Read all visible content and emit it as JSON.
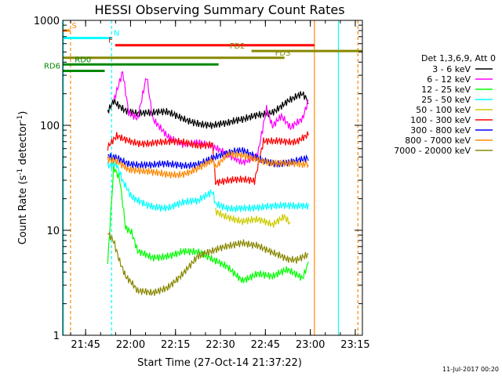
{
  "chart_data": {
    "type": "line",
    "title": "HESSI Observing Summary Count Rates",
    "xlabel": "Start Time (27-Oct-14 21:37:22)",
    "ylabel_main": "Count Rate (s",
    "ylabel_sup1": "-1",
    "ylabel_mid": " detector",
    "ylabel_sup2": "-1",
    "ylabel_end": ")",
    "yscale": "log",
    "ylim": [
      1,
      1000
    ],
    "y_ticks": [
      1,
      10,
      100,
      1000
    ],
    "y_tick_labels": [
      "1",
      "10",
      "100",
      "1000"
    ],
    "xlim_minutes": [
      0,
      100
    ],
    "x_ticks_minutes": [
      7.63,
      22.63,
      37.63,
      52.63,
      67.63,
      82.63,
      97.63
    ],
    "x_tick_labels": [
      "21:45",
      "22:00",
      "22:15",
      "22:30",
      "22:45",
      "23:00",
      "23:15"
    ],
    "legend_title": "Det 1,3,6,9, Att 0",
    "legend_placement": "right",
    "series": [
      {
        "name": "3 - 6 keV",
        "color": "#000000",
        "points": [
          [
            15,
            140
          ],
          [
            17,
            180
          ],
          [
            19,
            160
          ],
          [
            21,
            145
          ],
          [
            25,
            130
          ],
          [
            30,
            125
          ],
          [
            35,
            130
          ],
          [
            40,
            120
          ],
          [
            45,
            110
          ],
          [
            50,
            100
          ],
          [
            55,
            100
          ],
          [
            60,
            110
          ],
          [
            65,
            130
          ],
          [
            70,
            140
          ],
          [
            75,
            170
          ],
          [
            80,
            190
          ],
          [
            82,
            160
          ]
        ]
      },
      {
        "name": "6 - 12 keV",
        "color": "#ff00ff",
        "points": [
          [
            17,
            180
          ],
          [
            20,
            330
          ],
          [
            22,
            130
          ],
          [
            25,
            110
          ],
          [
            28,
            280
          ],
          [
            30,
            110
          ],
          [
            35,
            80
          ],
          [
            40,
            70
          ],
          [
            45,
            70
          ],
          [
            50,
            60
          ],
          [
            55,
            50
          ],
          [
            60,
            45
          ],
          [
            65,
            55
          ],
          [
            68,
            150
          ],
          [
            70,
            100
          ],
          [
            73,
            120
          ],
          [
            76,
            90
          ],
          [
            80,
            110
          ],
          [
            82,
            170
          ]
        ]
      },
      {
        "name": "12 - 25 keV",
        "color": "#00ff00",
        "points": [
          [
            15,
            5
          ],
          [
            17,
            40
          ],
          [
            19,
            30
          ],
          [
            21,
            10
          ],
          [
            23,
            9
          ],
          [
            25,
            6
          ],
          [
            30,
            5.5
          ],
          [
            35,
            6
          ],
          [
            40,
            6.5
          ],
          [
            45,
            6
          ],
          [
            50,
            5
          ],
          [
            55,
            4.5
          ],
          [
            60,
            3.5
          ],
          [
            65,
            4
          ],
          [
            70,
            3.5
          ],
          [
            75,
            4
          ],
          [
            80,
            3.5
          ],
          [
            82,
            5
          ]
        ]
      },
      {
        "name": "25 - 50 keV",
        "color": "#00ffff",
        "points": [
          [
            15,
            40
          ],
          [
            18,
            40
          ],
          [
            20,
            28
          ],
          [
            23,
            20
          ],
          [
            28,
            18
          ],
          [
            35,
            17
          ],
          [
            40,
            18
          ],
          [
            45,
            18
          ],
          [
            50,
            23
          ],
          [
            51,
            18
          ],
          [
            55,
            17
          ],
          [
            60,
            17
          ],
          [
            65,
            16
          ],
          [
            70,
            16
          ],
          [
            75,
            17
          ],
          [
            80,
            18
          ],
          [
            82,
            18
          ]
        ]
      },
      {
        "name": "50 - 100 keV",
        "color": "#cccc00",
        "points": [
          [
            51,
            16
          ],
          [
            55,
            14
          ],
          [
            60,
            12
          ],
          [
            65,
            12
          ],
          [
            70,
            11
          ],
          [
            74,
            14
          ],
          [
            76,
            12
          ]
        ]
      },
      {
        "name": "100 - 300 keV",
        "color": "#ff0000",
        "points": [
          [
            15,
            60
          ],
          [
            18,
            80
          ],
          [
            22,
            75
          ],
          [
            26,
            70
          ],
          [
            30,
            68
          ],
          [
            35,
            66
          ],
          [
            40,
            67
          ],
          [
            45,
            66
          ],
          [
            50,
            70
          ],
          [
            51,
            30
          ],
          [
            55,
            30
          ],
          [
            60,
            29
          ],
          [
            64,
            28
          ],
          [
            67,
            70
          ],
          [
            72,
            75
          ],
          [
            78,
            72
          ],
          [
            82,
            80
          ]
        ]
      },
      {
        "name": "300 - 800 keV",
        "color": "#0000ff",
        "points": [
          [
            15,
            52
          ],
          [
            18,
            52
          ],
          [
            22,
            45
          ],
          [
            26,
            42
          ],
          [
            30,
            40
          ],
          [
            35,
            41
          ],
          [
            40,
            42
          ],
          [
            45,
            45
          ],
          [
            50,
            50
          ],
          [
            55,
            52
          ],
          [
            60,
            55
          ],
          [
            63,
            52
          ],
          [
            67,
            48
          ],
          [
            72,
            45
          ],
          [
            78,
            45
          ],
          [
            82,
            46
          ]
        ]
      },
      {
        "name": "800 - 7000 keV",
        "color": "#ff8800",
        "points": [
          [
            15,
            50
          ],
          [
            18,
            48
          ],
          [
            22,
            38
          ],
          [
            26,
            35
          ],
          [
            30,
            34
          ],
          [
            35,
            34
          ],
          [
            40,
            36
          ],
          [
            45,
            40
          ],
          [
            50,
            45
          ],
          [
            51,
            38
          ],
          [
            55,
            50
          ],
          [
            60,
            52
          ],
          [
            65,
            50
          ],
          [
            70,
            45
          ],
          [
            75,
            42
          ],
          [
            80,
            40
          ],
          [
            82,
            42
          ]
        ]
      },
      {
        "name": "7000 - 20000 keV",
        "color": "#888800",
        "points": [
          [
            15,
            10
          ],
          [
            17,
            8
          ],
          [
            19,
            5
          ],
          [
            21,
            3.5
          ],
          [
            23,
            3
          ],
          [
            25,
            2.5
          ],
          [
            30,
            2.5
          ],
          [
            35,
            3
          ],
          [
            40,
            4
          ],
          [
            45,
            5.5
          ],
          [
            50,
            6
          ],
          [
            55,
            7
          ],
          [
            60,
            8
          ],
          [
            65,
            7.5
          ],
          [
            70,
            6
          ],
          [
            75,
            5
          ],
          [
            78,
            5
          ],
          [
            82,
            6
          ]
        ]
      }
    ],
    "flag_bars": [
      {
        "label": "S",
        "color": "#ff8800",
        "x": [
          0,
          2.5
        ],
        "y": 800
      },
      {
        "label": "N",
        "color": "#00ffff",
        "x": [
          0,
          16.5
        ],
        "y": 680
      },
      {
        "label": "F",
        "color": "#ff0000",
        "x": [
          17.5,
          84
        ],
        "y": 580
      },
      {
        "label": "FD2",
        "color": "#888800",
        "x": [
          63,
          100
        ],
        "y": 510
      },
      {
        "label": "FD3",
        "color": "#888800",
        "x": [
          0,
          74
        ],
        "y": 440
      },
      {
        "label": "RD0",
        "color": "#008800",
        "x": [
          0,
          52
        ],
        "y": 380
      },
      {
        "label": "RD6",
        "color": "#008800",
        "x": [
          0,
          14
        ],
        "y": 330
      }
    ],
    "vlines": [
      {
        "x": 0.2,
        "color": "#00ffff",
        "dashed": false
      },
      {
        "x": 2.6,
        "color": "#ff8800",
        "dashed": true
      },
      {
        "x": 16.3,
        "color": "#00ffff",
        "dashed": true
      },
      {
        "x": 84,
        "color": "#ff8800",
        "dashed": false
      },
      {
        "x": 92,
        "color": "#00ffff",
        "dashed": false
      },
      {
        "x": 98.5,
        "color": "#ff8800",
        "dashed": true
      }
    ],
    "footer_timestamp": "11-Jul-2017 00:20"
  }
}
